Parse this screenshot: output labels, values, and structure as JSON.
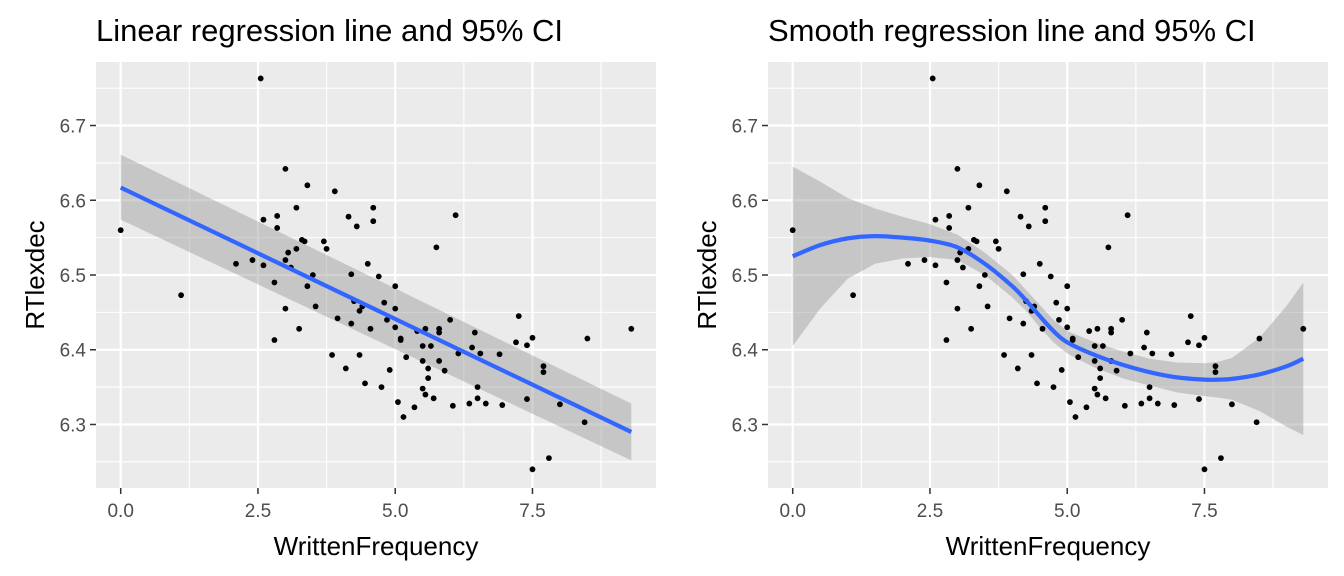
{
  "colors": {
    "panel_bg": "#EBEBEB",
    "grid": "#FFFFFF",
    "point": "#000000",
    "line": "#3366FF",
    "ribbon": "#999999",
    "tick_label": "#4D4D4D",
    "text": "#000000"
  },
  "chart_data": [
    {
      "type": "scatter",
      "title": "Linear regression line and 95% CI",
      "xlabel": "WrittenFrequency",
      "ylabel": "RTlexdec",
      "xlim": [
        -0.45,
        9.75
      ],
      "ylim": [
        6.215,
        6.785
      ],
      "x_ticks": [
        0.0,
        2.5,
        5.0,
        7.5
      ],
      "x_tick_labels": [
        "0.0",
        "2.5",
        "5.0",
        "7.5"
      ],
      "y_ticks": [
        6.3,
        6.4,
        6.5,
        6.6,
        6.7
      ],
      "y_tick_labels": [
        "6.3",
        "6.4",
        "6.5",
        "6.6",
        "6.7"
      ],
      "grid": true,
      "points": [
        [
          0.0,
          6.56
        ],
        [
          1.1,
          6.473
        ],
        [
          2.1,
          6.515
        ],
        [
          2.4,
          6.52
        ],
        [
          2.55,
          6.763
        ],
        [
          2.6,
          6.574
        ],
        [
          2.6,
          6.513
        ],
        [
          2.8,
          6.49
        ],
        [
          2.8,
          6.413
        ],
        [
          2.85,
          6.579
        ],
        [
          2.85,
          6.563
        ],
        [
          3.0,
          6.642
        ],
        [
          3.0,
          6.52
        ],
        [
          3.05,
          6.53
        ],
        [
          3.0,
          6.455
        ],
        [
          3.1,
          6.51
        ],
        [
          3.2,
          6.59
        ],
        [
          3.2,
          6.535
        ],
        [
          3.25,
          6.428
        ],
        [
          3.3,
          6.547
        ],
        [
          3.35,
          6.545
        ],
        [
          3.4,
          6.485
        ],
        [
          3.4,
          6.62
        ],
        [
          3.5,
          6.5
        ],
        [
          3.55,
          6.458
        ],
        [
          3.7,
          6.545
        ],
        [
          3.75,
          6.535
        ],
        [
          3.85,
          6.393
        ],
        [
          3.9,
          6.612
        ],
        [
          3.95,
          6.442
        ],
        [
          4.1,
          6.375
        ],
        [
          4.15,
          6.578
        ],
        [
          4.2,
          6.501
        ],
        [
          4.2,
          6.435
        ],
        [
          4.25,
          6.465
        ],
        [
          4.3,
          6.565
        ],
        [
          4.35,
          6.393
        ],
        [
          4.35,
          6.452
        ],
        [
          4.4,
          6.458
        ],
        [
          4.45,
          6.355
        ],
        [
          4.5,
          6.515
        ],
        [
          4.55,
          6.428
        ],
        [
          4.6,
          6.59
        ],
        [
          4.6,
          6.572
        ],
        [
          4.7,
          6.498
        ],
        [
          4.75,
          6.35
        ],
        [
          4.8,
          6.463
        ],
        [
          4.85,
          6.44
        ],
        [
          4.9,
          6.373
        ],
        [
          5.0,
          6.485
        ],
        [
          5.0,
          6.455
        ],
        [
          5.0,
          6.43
        ],
        [
          5.05,
          6.33
        ],
        [
          5.1,
          6.415
        ],
        [
          5.1,
          6.413
        ],
        [
          5.15,
          6.31
        ],
        [
          5.2,
          6.39
        ],
        [
          5.35,
          6.323
        ],
        [
          5.4,
          6.425
        ],
        [
          5.5,
          6.405
        ],
        [
          5.5,
          6.385
        ],
        [
          5.5,
          6.348
        ],
        [
          5.55,
          6.34
        ],
        [
          5.55,
          6.428
        ],
        [
          5.6,
          6.375
        ],
        [
          5.6,
          6.362
        ],
        [
          5.65,
          6.405
        ],
        [
          5.7,
          6.335
        ],
        [
          5.75,
          6.537
        ],
        [
          5.8,
          6.385
        ],
        [
          5.8,
          6.428
        ],
        [
          5.8,
          6.423
        ],
        [
          5.9,
          6.372
        ],
        [
          6.0,
          6.44
        ],
        [
          6.05,
          6.325
        ],
        [
          6.1,
          6.58
        ],
        [
          6.15,
          6.395
        ],
        [
          6.35,
          6.328
        ],
        [
          6.4,
          6.403
        ],
        [
          6.45,
          6.423
        ],
        [
          6.5,
          6.35
        ],
        [
          6.5,
          6.335
        ],
        [
          6.55,
          6.395
        ],
        [
          6.65,
          6.328
        ],
        [
          6.9,
          6.394
        ],
        [
          6.95,
          6.326
        ],
        [
          7.2,
          6.41
        ],
        [
          7.25,
          6.445
        ],
        [
          7.4,
          6.334
        ],
        [
          7.4,
          6.406
        ],
        [
          7.5,
          6.416
        ],
        [
          7.5,
          6.24
        ],
        [
          7.7,
          6.378
        ],
        [
          7.7,
          6.37
        ],
        [
          7.8,
          6.255
        ],
        [
          8.0,
          6.327
        ],
        [
          8.45,
          6.303
        ],
        [
          8.5,
          6.415
        ],
        [
          9.3,
          6.428
        ]
      ],
      "fit": {
        "method": "lm",
        "x": [
          0.0,
          9.3
        ],
        "y": [
          6.617,
          6.29
        ],
        "ci_lower": [
          6.574,
          6.252
        ],
        "ci_upper": [
          6.661,
          6.328
        ]
      }
    },
    {
      "type": "scatter",
      "title": "Smooth regression line and 95% CI",
      "xlabel": "WrittenFrequency",
      "ylabel": "RTlexdec",
      "xlim": [
        -0.45,
        9.75
      ],
      "ylim": [
        6.215,
        6.785
      ],
      "x_ticks": [
        0.0,
        2.5,
        5.0,
        7.5
      ],
      "x_tick_labels": [
        "0.0",
        "2.5",
        "5.0",
        "7.5"
      ],
      "y_ticks": [
        6.3,
        6.4,
        6.5,
        6.6,
        6.7
      ],
      "y_tick_labels": [
        "6.3",
        "6.4",
        "6.5",
        "6.6",
        "6.7"
      ],
      "grid": true,
      "points": [
        [
          0.0,
          6.56
        ],
        [
          1.1,
          6.473
        ],
        [
          2.1,
          6.515
        ],
        [
          2.4,
          6.52
        ],
        [
          2.55,
          6.763
        ],
        [
          2.6,
          6.574
        ],
        [
          2.6,
          6.513
        ],
        [
          2.8,
          6.49
        ],
        [
          2.8,
          6.413
        ],
        [
          2.85,
          6.579
        ],
        [
          2.85,
          6.563
        ],
        [
          3.0,
          6.642
        ],
        [
          3.0,
          6.52
        ],
        [
          3.05,
          6.53
        ],
        [
          3.0,
          6.455
        ],
        [
          3.1,
          6.51
        ],
        [
          3.2,
          6.59
        ],
        [
          3.2,
          6.535
        ],
        [
          3.25,
          6.428
        ],
        [
          3.3,
          6.547
        ],
        [
          3.35,
          6.545
        ],
        [
          3.4,
          6.485
        ],
        [
          3.4,
          6.62
        ],
        [
          3.5,
          6.5
        ],
        [
          3.55,
          6.458
        ],
        [
          3.7,
          6.545
        ],
        [
          3.75,
          6.535
        ],
        [
          3.85,
          6.393
        ],
        [
          3.9,
          6.612
        ],
        [
          3.95,
          6.442
        ],
        [
          4.1,
          6.375
        ],
        [
          4.15,
          6.578
        ],
        [
          4.2,
          6.501
        ],
        [
          4.2,
          6.435
        ],
        [
          4.25,
          6.465
        ],
        [
          4.3,
          6.565
        ],
        [
          4.35,
          6.393
        ],
        [
          4.35,
          6.452
        ],
        [
          4.4,
          6.458
        ],
        [
          4.45,
          6.355
        ],
        [
          4.5,
          6.515
        ],
        [
          4.55,
          6.428
        ],
        [
          4.6,
          6.59
        ],
        [
          4.6,
          6.572
        ],
        [
          4.7,
          6.498
        ],
        [
          4.75,
          6.35
        ],
        [
          4.8,
          6.463
        ],
        [
          4.85,
          6.44
        ],
        [
          4.9,
          6.373
        ],
        [
          5.0,
          6.485
        ],
        [
          5.0,
          6.455
        ],
        [
          5.0,
          6.43
        ],
        [
          5.05,
          6.33
        ],
        [
          5.1,
          6.415
        ],
        [
          5.1,
          6.413
        ],
        [
          5.15,
          6.31
        ],
        [
          5.2,
          6.39
        ],
        [
          5.35,
          6.323
        ],
        [
          5.4,
          6.425
        ],
        [
          5.5,
          6.405
        ],
        [
          5.5,
          6.385
        ],
        [
          5.5,
          6.348
        ],
        [
          5.55,
          6.34
        ],
        [
          5.55,
          6.428
        ],
        [
          5.6,
          6.375
        ],
        [
          5.6,
          6.362
        ],
        [
          5.65,
          6.405
        ],
        [
          5.7,
          6.335
        ],
        [
          5.75,
          6.537
        ],
        [
          5.8,
          6.385
        ],
        [
          5.8,
          6.428
        ],
        [
          5.8,
          6.423
        ],
        [
          5.9,
          6.372
        ],
        [
          6.0,
          6.44
        ],
        [
          6.05,
          6.325
        ],
        [
          6.1,
          6.58
        ],
        [
          6.15,
          6.395
        ],
        [
          6.35,
          6.328
        ],
        [
          6.4,
          6.403
        ],
        [
          6.45,
          6.423
        ],
        [
          6.5,
          6.35
        ],
        [
          6.5,
          6.335
        ],
        [
          6.55,
          6.395
        ],
        [
          6.65,
          6.328
        ],
        [
          6.9,
          6.394
        ],
        [
          6.95,
          6.326
        ],
        [
          7.2,
          6.41
        ],
        [
          7.25,
          6.445
        ],
        [
          7.4,
          6.334
        ],
        [
          7.4,
          6.406
        ],
        [
          7.5,
          6.416
        ],
        [
          7.5,
          6.24
        ],
        [
          7.7,
          6.378
        ],
        [
          7.7,
          6.37
        ],
        [
          7.8,
          6.255
        ],
        [
          8.0,
          6.327
        ],
        [
          8.45,
          6.303
        ],
        [
          8.5,
          6.415
        ],
        [
          9.3,
          6.428
        ]
      ],
      "fit": {
        "method": "loess",
        "x": [
          0.0,
          0.5,
          1.0,
          1.5,
          2.0,
          2.5,
          3.0,
          3.5,
          4.0,
          4.25,
          4.5,
          4.75,
          5.0,
          5.5,
          6.0,
          6.5,
          7.0,
          7.5,
          7.75,
          8.0,
          8.5,
          9.0,
          9.3
        ],
        "y": [
          6.525,
          6.54,
          6.549,
          6.552,
          6.55,
          6.546,
          6.537,
          6.515,
          6.485,
          6.466,
          6.445,
          6.425,
          6.41,
          6.393,
          6.38,
          6.37,
          6.363,
          6.36,
          6.36,
          6.361,
          6.367,
          6.378,
          6.388
        ],
        "ci_lower": [
          6.405,
          6.455,
          6.495,
          6.515,
          6.522,
          6.524,
          6.52,
          6.5,
          6.47,
          6.452,
          6.43,
          6.41,
          6.395,
          6.376,
          6.362,
          6.352,
          6.343,
          6.338,
          6.336,
          6.333,
          6.318,
          6.297,
          6.286
        ],
        "ci_upper": [
          6.645,
          6.625,
          6.603,
          6.589,
          6.578,
          6.568,
          6.554,
          6.53,
          6.5,
          6.48,
          6.46,
          6.44,
          6.425,
          6.41,
          6.398,
          6.388,
          6.383,
          6.382,
          6.384,
          6.389,
          6.416,
          6.459,
          6.49
        ]
      }
    }
  ]
}
